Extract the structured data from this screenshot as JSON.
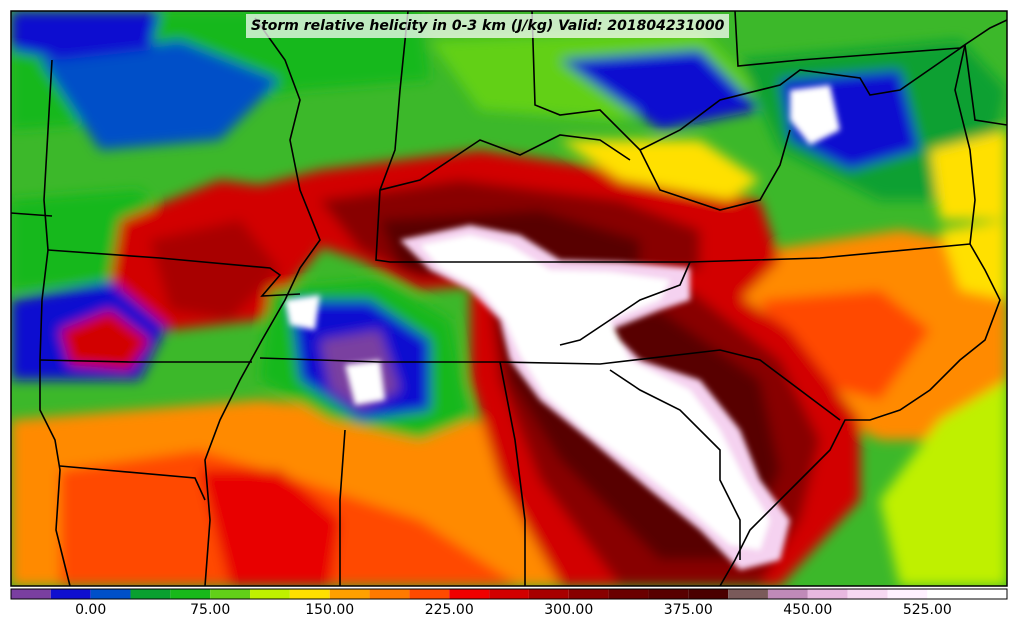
{
  "title": "Storm relative helicity in 0-3 km (J/kg) Valid: 201804231000",
  "colorbar": {
    "tick_labels": [
      "0.00",
      "75.00",
      "150.00",
      "225.00",
      "300.00",
      "375.00",
      "450.00",
      "525.00"
    ],
    "tick_values": [
      0,
      75,
      150,
      225,
      300,
      375,
      450,
      525
    ],
    "range": [
      -50,
      575
    ],
    "bin_width": 25,
    "colors": [
      "#7a3fa0",
      "#1010d0",
      "#0050c8",
      "#0aa030",
      "#18b81a",
      "#62d018",
      "#bff000",
      "#ffe000",
      "#ffa000",
      "#ff7a00",
      "#ff4a00",
      "#f00000",
      "#d20000",
      "#a80000",
      "#880000",
      "#6a0000",
      "#580000",
      "#4a0000",
      "#7a5a5a",
      "#c08ab8",
      "#e8b8e0",
      "#f7d8f2",
      "#fff0ff",
      "#ffffff",
      "#ffffff"
    ]
  },
  "icons": {
    "state-borders": "state-boundary-lines",
    "coastline": "coastline-line"
  }
}
